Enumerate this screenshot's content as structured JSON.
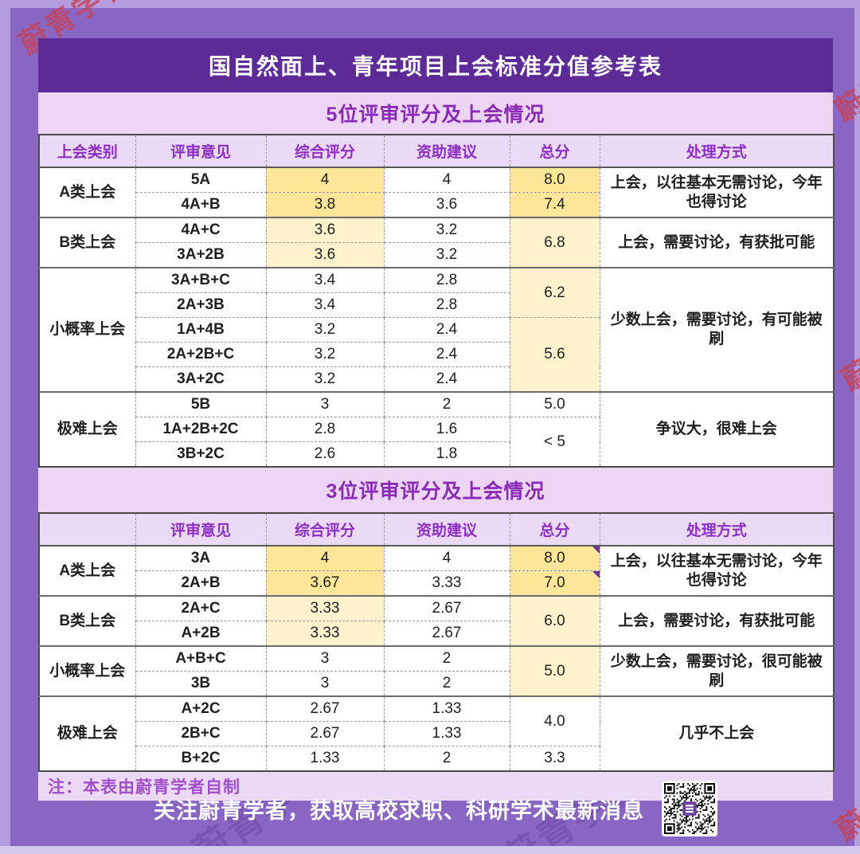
{
  "title": "国自然面上、青年项目上会标准分值参考表",
  "watermark": {
    "text": "蔚青学者"
  },
  "note": "注：本表由蔚青学者自制",
  "footer": {
    "text": "关注蔚青学者，获取高校求职、科研学术最新消息",
    "qr": "wechat-qr-code"
  },
  "colors": {
    "edge": "#B49CDE",
    "frame": "#8A66C4",
    "title_bg": "#5D2B97",
    "title_fg": "#FFFFFF",
    "section_bg": "#ECD5F5",
    "section_fg": "#8A2BB5",
    "header_bg": "#EADAF5",
    "header_fg": "#8D2FC0",
    "y1": "#FFE699",
    "y2": "#FFF2CC",
    "note_bg": "#EBD9F5",
    "note_fg": "#A04FC8",
    "footer_fg": "#FFFFFF",
    "marker": "#7030A0",
    "qr_center": "#6B3FA0",
    "wm_red": "#C64256"
  },
  "tables": [
    {
      "section_title": "5位评审评分及上会情况",
      "columns": [
        "上会类别",
        "评审意见",
        "综合评分",
        "资助建议",
        "总分",
        "处理方式"
      ],
      "rows": [
        {
          "cells": [
            {
              "t": "A类上会",
              "c": "cat",
              "rs": 2
            },
            {
              "t": "5A",
              "c": "op"
            },
            {
              "t": "4",
              "bg": "y1"
            },
            {
              "t": "4"
            },
            {
              "t": "8.0",
              "bg": "y1"
            },
            {
              "t": "上会，以往基本无需讨论，今年也得讨论",
              "c": "deal",
              "rs": 2
            }
          ]
        },
        {
          "cells": [
            {
              "t": "4A+B",
              "c": "op"
            },
            {
              "t": "3.8",
              "bg": "y1"
            },
            {
              "t": "3.6"
            },
            {
              "t": "7.4",
              "bg": "y1"
            }
          ]
        },
        {
          "sep": 1,
          "cells": [
            {
              "t": "B类上会",
              "c": "cat",
              "rs": 2
            },
            {
              "t": "4A+C",
              "c": "op"
            },
            {
              "t": "3.6",
              "bg": "y2"
            },
            {
              "t": "3.2"
            },
            {
              "t": "6.8",
              "bg": "y2",
              "rs": 2
            },
            {
              "t": "上会，需要讨论，有获批可能",
              "c": "deal",
              "rs": 2
            }
          ]
        },
        {
          "cells": [
            {
              "t": "3A+2B",
              "c": "op"
            },
            {
              "t": "3.6",
              "bg": "y2"
            },
            {
              "t": "3.2"
            }
          ]
        },
        {
          "sep": 1,
          "cells": [
            {
              "t": "小概率上会",
              "c": "cat",
              "rs": 5
            },
            {
              "t": "3A+B+C",
              "c": "op"
            },
            {
              "t": "3.4"
            },
            {
              "t": "2.8"
            },
            {
              "t": "6.2",
              "bg": "y2",
              "rs": 2
            },
            {
              "t": "少数上会，需要讨论，有可能被刷",
              "c": "deal",
              "rs": 5
            }
          ]
        },
        {
          "cells": [
            {
              "t": "2A+3B",
              "c": "op"
            },
            {
              "t": "3.4"
            },
            {
              "t": "2.8"
            }
          ]
        },
        {
          "cells": [
            {
              "t": "1A+4B",
              "c": "op"
            },
            {
              "t": "3.2"
            },
            {
              "t": "2.4"
            },
            {
              "t": "5.6",
              "bg": "y2",
              "rs": 3
            }
          ]
        },
        {
          "cells": [
            {
              "t": "2A+2B+C",
              "c": "op"
            },
            {
              "t": "3.2"
            },
            {
              "t": "2.4"
            }
          ]
        },
        {
          "cells": [
            {
              "t": "3A+2C",
              "c": "op"
            },
            {
              "t": "3.2"
            },
            {
              "t": "2.4"
            }
          ]
        },
        {
          "sep": 1,
          "cells": [
            {
              "t": "极难上会",
              "c": "cat",
              "rs": 3
            },
            {
              "t": "5B",
              "c": "op"
            },
            {
              "t": "3"
            },
            {
              "t": "2"
            },
            {
              "t": "5.0"
            },
            {
              "t": "争议大，很难上会",
              "c": "deal",
              "rs": 3
            }
          ]
        },
        {
          "cells": [
            {
              "t": "1A+2B+2C",
              "c": "op"
            },
            {
              "t": "2.8"
            },
            {
              "t": "1.6"
            },
            {
              "t": "< 5",
              "rs": 2
            }
          ]
        },
        {
          "cells": [
            {
              "t": "3B+2C",
              "c": "op"
            },
            {
              "t": "2.6"
            },
            {
              "t": "1.8"
            }
          ]
        }
      ]
    },
    {
      "section_title": "3位评审评分及上会情况",
      "columns": [
        "",
        "评审意见",
        "综合评分",
        "资助建议",
        "总分",
        "处理方式"
      ],
      "rows": [
        {
          "cells": [
            {
              "t": "A类上会",
              "c": "cat",
              "rs": 2
            },
            {
              "t": "3A",
              "c": "op"
            },
            {
              "t": "4",
              "bg": "y1"
            },
            {
              "t": "4"
            },
            {
              "t": "8.0",
              "bg": "y1",
              "m": 1
            },
            {
              "t": "上会，以往基本无需讨论，今年也得讨论",
              "c": "deal",
              "rs": 2
            }
          ]
        },
        {
          "cells": [
            {
              "t": "2A+B",
              "c": "op"
            },
            {
              "t": "3.67",
              "bg": "y1"
            },
            {
              "t": "3.33"
            },
            {
              "t": "7.0",
              "bg": "y1",
              "m": 1
            }
          ]
        },
        {
          "sep": 1,
          "cells": [
            {
              "t": "B类上会",
              "c": "cat",
              "rs": 2
            },
            {
              "t": "2A+C",
              "c": "op"
            },
            {
              "t": "3.33",
              "bg": "y2"
            },
            {
              "t": "2.67"
            },
            {
              "t": "6.0",
              "bg": "y2",
              "rs": 2
            },
            {
              "t": "上会，需要讨论，有获批可能",
              "c": "deal",
              "rs": 2
            }
          ]
        },
        {
          "cells": [
            {
              "t": "A+2B",
              "c": "op"
            },
            {
              "t": "3.33",
              "bg": "y2"
            },
            {
              "t": "2.67"
            }
          ]
        },
        {
          "sep": 1,
          "cells": [
            {
              "t": "小概率上会",
              "c": "cat",
              "rs": 2
            },
            {
              "t": "A+B+C",
              "c": "op"
            },
            {
              "t": "3"
            },
            {
              "t": "2"
            },
            {
              "t": "5.0",
              "bg": "y2",
              "rs": 2
            },
            {
              "t": "少数上会，需要讨论，很可能被刷",
              "c": "deal",
              "rs": 2
            }
          ]
        },
        {
          "cells": [
            {
              "t": "3B",
              "c": "op"
            },
            {
              "t": "3"
            },
            {
              "t": "2"
            }
          ]
        },
        {
          "sep": 1,
          "cells": [
            {
              "t": "极难上会",
              "c": "cat",
              "rs": 3
            },
            {
              "t": "A+2C",
              "c": "op"
            },
            {
              "t": "2.67"
            },
            {
              "t": "1.33"
            },
            {
              "t": "4.0",
              "rs": 2
            },
            {
              "t": "几乎不上会",
              "c": "deal",
              "rs": 3
            }
          ]
        },
        {
          "cells": [
            {
              "t": "2B+C",
              "c": "op"
            },
            {
              "t": "2.67"
            },
            {
              "t": "1.33"
            }
          ]
        },
        {
          "cells": [
            {
              "t": "B+2C",
              "c": "op"
            },
            {
              "t": "1.33"
            },
            {
              "t": "2"
            },
            {
              "t": "3.3"
            }
          ]
        }
      ]
    }
  ]
}
